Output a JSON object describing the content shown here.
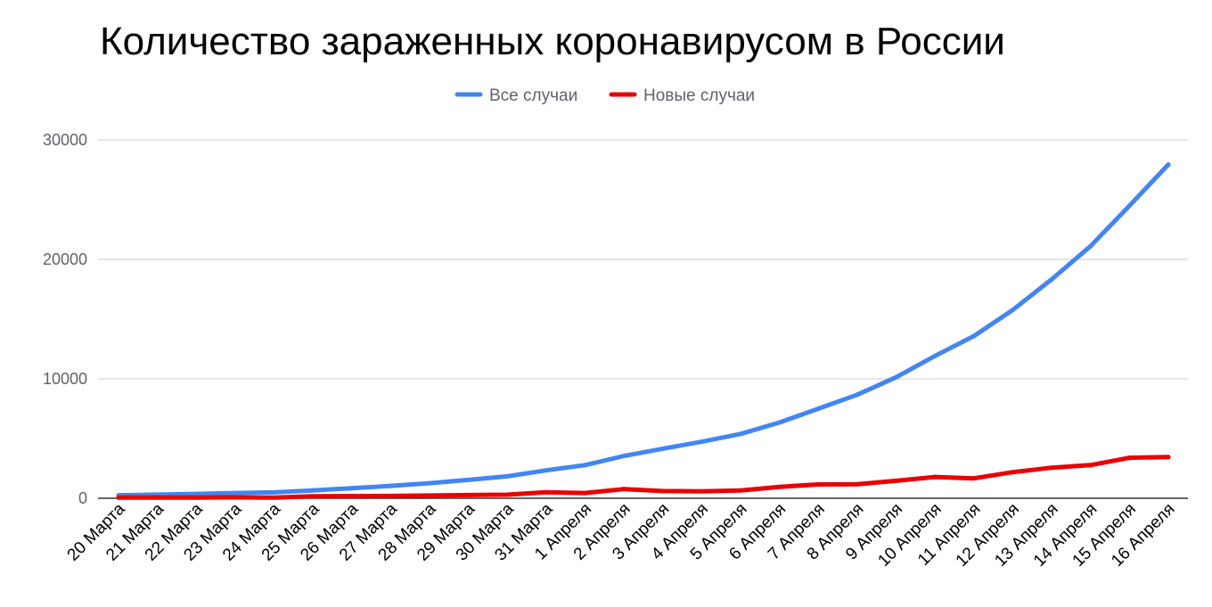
{
  "chart_data": {
    "type": "line",
    "title": "Количество зараженных коронавирусом в России",
    "xlabel": "",
    "ylabel": "",
    "categories": [
      "20 Марта",
      "21 Марта",
      "22 Марта",
      "23 Марта",
      "24 Марта",
      "25 Марта",
      "26 Марта",
      "27 Марта",
      "28 Марта",
      "29 Марта",
      "30 Марта",
      "31 Марта",
      "1 Апреля",
      "2 Апреля",
      "3 Апреля",
      "4 Апреля",
      "5 Апреля",
      "6 Апреля",
      "7 Апреля",
      "8 Апреля",
      "9 Апреля",
      "10 Апреля",
      "11 Апреля",
      "12 Апреля",
      "13 Апреля",
      "14 Апреля",
      "15 Апреля",
      "16 Апреля"
    ],
    "series": [
      {
        "name": "Все случаи",
        "color": "#4285f4",
        "values": [
          253,
          306,
          367,
          438,
          495,
          658,
          840,
          1036,
          1264,
          1534,
          1836,
          2337,
          2777,
          3548,
          4149,
          4731,
          5389,
          6343,
          7497,
          8672,
          10131,
          11917,
          13584,
          15770,
          18328,
          21102,
          24490,
          27938
        ]
      },
      {
        "name": "Новые случаи",
        "color": "#ea0000",
        "values": [
          54,
          53,
          61,
          71,
          57,
          163,
          182,
          196,
          228,
          270,
          302,
          501,
          440,
          771,
          601,
          582,
          658,
          954,
          1154,
          1175,
          1459,
          1786,
          1667,
          2186,
          2558,
          2774,
          3388,
          3448
        ]
      }
    ],
    "ylim": [
      0,
      30000
    ],
    "yticks": [
      0,
      10000,
      20000,
      30000
    ],
    "grid": true,
    "legend_position": "top-center"
  }
}
